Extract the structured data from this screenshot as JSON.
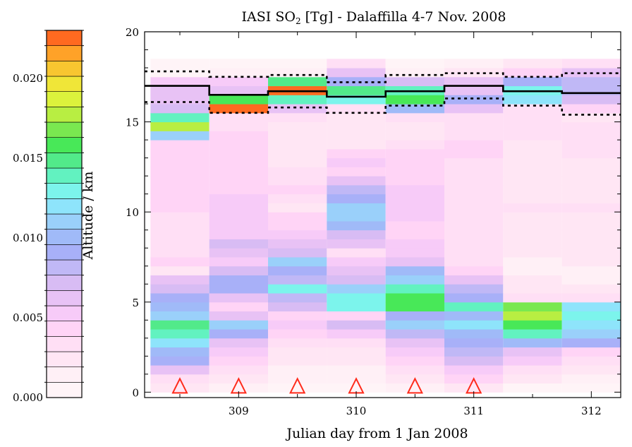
{
  "chart_data": {
    "type": "heatmap",
    "title": "IASI SO",
    "title_sub": "2",
    "title_rest": " [Tg] - Dalaffilla 4-7 Nov. 2008",
    "xlabel": "Julian day from 1 Jan 2008",
    "ylabel": "Altitude / km",
    "xlim": [
      308.2,
      312.25
    ],
    "ylim": [
      -0.3,
      20
    ],
    "x_ticks": [
      309,
      310,
      311,
      312
    ],
    "y_ticks": [
      0,
      5,
      10,
      15,
      20
    ],
    "colorbar": {
      "range": [
        0.0,
        0.023
      ],
      "ticks": [
        "0.000",
        "0.005",
        "0.010",
        "0.015",
        "0.020"
      ],
      "tick_values": [
        0.0,
        0.005,
        0.01,
        0.015,
        0.02
      ],
      "colors": [
        "#fff4f7",
        "#fff0f6",
        "#ffe6f4",
        "#ffdff5",
        "#ffd4f6",
        "#f7cbf8",
        "#e8c2f5",
        "#d8bcf4",
        "#c0b8f6",
        "#a8b0f8",
        "#a0baf8",
        "#9ad0fa",
        "#8ee4fb",
        "#7cf4ec",
        "#62f2c0",
        "#52ea8a",
        "#48e858",
        "#7ae850",
        "#b8ee42",
        "#dcf23c",
        "#f0e638",
        "#f8c630",
        "#ffa228",
        "#ff6a20"
      ]
    },
    "columns_x_center": [
      308.5,
      309.0,
      309.5,
      310.0,
      310.5,
      311.0,
      311.5,
      312.0
    ],
    "column_width": 0.5,
    "rows_y_bottom": [
      0.0,
      0.5,
      1.0,
      1.5,
      2.0,
      2.5,
      3.0,
      3.5,
      4.0,
      4.5,
      5.0,
      5.5,
      6.0,
      6.5,
      7.0,
      7.5,
      8.0,
      8.5,
      9.0,
      9.5,
      10.0,
      10.5,
      11.0,
      11.5,
      12.0,
      12.5,
      13.0,
      13.5,
      14.0,
      14.5,
      15.0,
      15.5,
      16.0,
      16.5,
      17.0,
      17.5,
      18.0
    ],
    "row_height": 0.5,
    "cell_levels": [
      [
        2,
        1,
        0,
        0,
        1,
        2,
        0,
        0
      ],
      [
        3,
        2,
        1,
        1,
        2,
        4,
        2,
        1
      ],
      [
        6,
        3,
        1,
        1,
        3,
        5,
        3,
        2
      ],
      [
        9,
        4,
        2,
        2,
        4,
        7,
        5,
        3
      ],
      [
        10,
        5,
        2,
        2,
        5,
        8,
        6,
        4
      ],
      [
        12,
        6,
        3,
        3,
        6,
        9,
        10,
        9
      ],
      [
        14,
        9,
        4,
        5,
        8,
        10,
        14,
        11
      ],
      [
        15,
        11,
        5,
        7,
        11,
        12,
        16,
        12
      ],
      [
        11,
        6,
        4,
        4,
        9,
        10,
        18,
        13
      ],
      [
        10,
        4,
        7,
        13,
        16,
        14,
        17,
        12
      ],
      [
        9,
        6,
        8,
        13,
        16,
        9,
        3,
        3
      ],
      [
        7,
        9,
        13,
        11,
        14,
        8,
        2,
        2
      ],
      [
        6,
        9,
        8,
        7,
        11,
        6,
        2,
        1
      ],
      [
        2,
        7,
        9,
        6,
        10,
        4,
        1,
        1
      ],
      [
        4,
        5,
        11,
        5,
        6,
        3,
        1,
        2
      ],
      [
        3,
        6,
        7,
        3,
        5,
        3,
        2,
        2
      ],
      [
        3,
        7,
        6,
        6,
        5,
        3,
        2,
        2
      ],
      [
        3,
        5,
        5,
        7,
        4,
        3,
        2,
        2
      ],
      [
        3,
        5,
        4,
        10,
        4,
        3,
        2,
        2
      ],
      [
        3,
        5,
        4,
        11,
        5,
        3,
        2,
        2
      ],
      [
        4,
        5,
        2,
        11,
        5,
        3,
        3,
        3
      ],
      [
        4,
        5,
        3,
        9,
        5,
        3,
        2,
        2
      ],
      [
        4,
        4,
        4,
        8,
        5,
        3,
        2,
        2
      ],
      [
        4,
        4,
        3,
        6,
        4,
        3,
        2,
        2
      ],
      [
        4,
        4,
        3,
        4,
        4,
        3,
        2,
        2
      ],
      [
        4,
        4,
        2,
        5,
        4,
        3,
        2,
        2
      ],
      [
        4,
        4,
        2,
        4,
        4,
        4,
        2,
        3
      ],
      [
        4,
        4,
        2,
        2,
        3,
        4,
        2,
        3
      ],
      [
        11,
        4,
        2,
        2,
        2,
        3,
        3,
        3
      ],
      [
        18,
        3,
        2,
        2,
        2,
        3,
        3,
        3
      ],
      [
        14,
        3,
        3,
        2,
        3,
        3,
        3,
        2
      ],
      [
        7,
        23,
        6,
        3,
        10,
        6,
        3,
        4
      ],
      [
        6,
        16,
        14,
        13,
        16,
        9,
        12,
        7
      ],
      [
        6,
        6,
        23,
        15,
        14,
        6,
        13,
        8
      ],
      [
        5,
        5,
        15,
        9,
        7,
        6,
        9,
        8
      ],
      [
        0,
        1,
        1,
        6,
        1,
        2,
        4,
        6
      ],
      [
        0,
        0,
        0,
        3,
        0,
        1,
        2,
        3
      ]
    ],
    "lines": {
      "solid": [
        [
          308.2,
          17.0
        ],
        [
          308.75,
          17.0
        ],
        [
          308.75,
          16.5
        ],
        [
          309.25,
          16.5
        ],
        [
          309.25,
          16.7
        ],
        [
          309.75,
          16.7
        ],
        [
          309.75,
          16.4
        ],
        [
          310.25,
          16.4
        ],
        [
          310.25,
          16.7
        ],
        [
          310.75,
          16.7
        ],
        [
          310.75,
          17.0
        ],
        [
          311.25,
          17.0
        ],
        [
          311.25,
          16.7
        ],
        [
          311.75,
          16.7
        ],
        [
          311.75,
          16.6
        ],
        [
          312.25,
          16.6
        ]
      ],
      "dotted_upper": [
        [
          308.2,
          17.8
        ],
        [
          308.75,
          17.8
        ],
        [
          308.75,
          17.5
        ],
        [
          309.25,
          17.5
        ],
        [
          309.25,
          17.6
        ],
        [
          309.75,
          17.6
        ],
        [
          309.75,
          17.2
        ],
        [
          310.25,
          17.2
        ],
        [
          310.25,
          17.6
        ],
        [
          310.75,
          17.6
        ],
        [
          310.75,
          17.7
        ],
        [
          311.25,
          17.7
        ],
        [
          311.25,
          17.5
        ],
        [
          311.75,
          17.5
        ],
        [
          311.75,
          17.7
        ],
        [
          312.25,
          17.7
        ]
      ],
      "dotted_lower": [
        [
          308.2,
          16.1
        ],
        [
          308.75,
          16.1
        ],
        [
          308.75,
          15.5
        ],
        [
          309.25,
          15.5
        ],
        [
          309.25,
          15.8
        ],
        [
          309.75,
          15.8
        ],
        [
          309.75,
          15.5
        ],
        [
          310.25,
          15.5
        ],
        [
          310.25,
          15.9
        ],
        [
          310.75,
          15.9
        ],
        [
          310.75,
          16.3
        ],
        [
          311.25,
          16.3
        ],
        [
          311.25,
          15.9
        ],
        [
          311.75,
          15.9
        ],
        [
          311.75,
          15.4
        ],
        [
          312.25,
          15.4
        ]
      ]
    },
    "triangles_x": [
      308.5,
      309.0,
      309.5,
      310.0,
      310.5,
      311.0
    ],
    "triangle_color": "#ff2a1a",
    "grid": false,
    "legend": "colorbar-left"
  }
}
